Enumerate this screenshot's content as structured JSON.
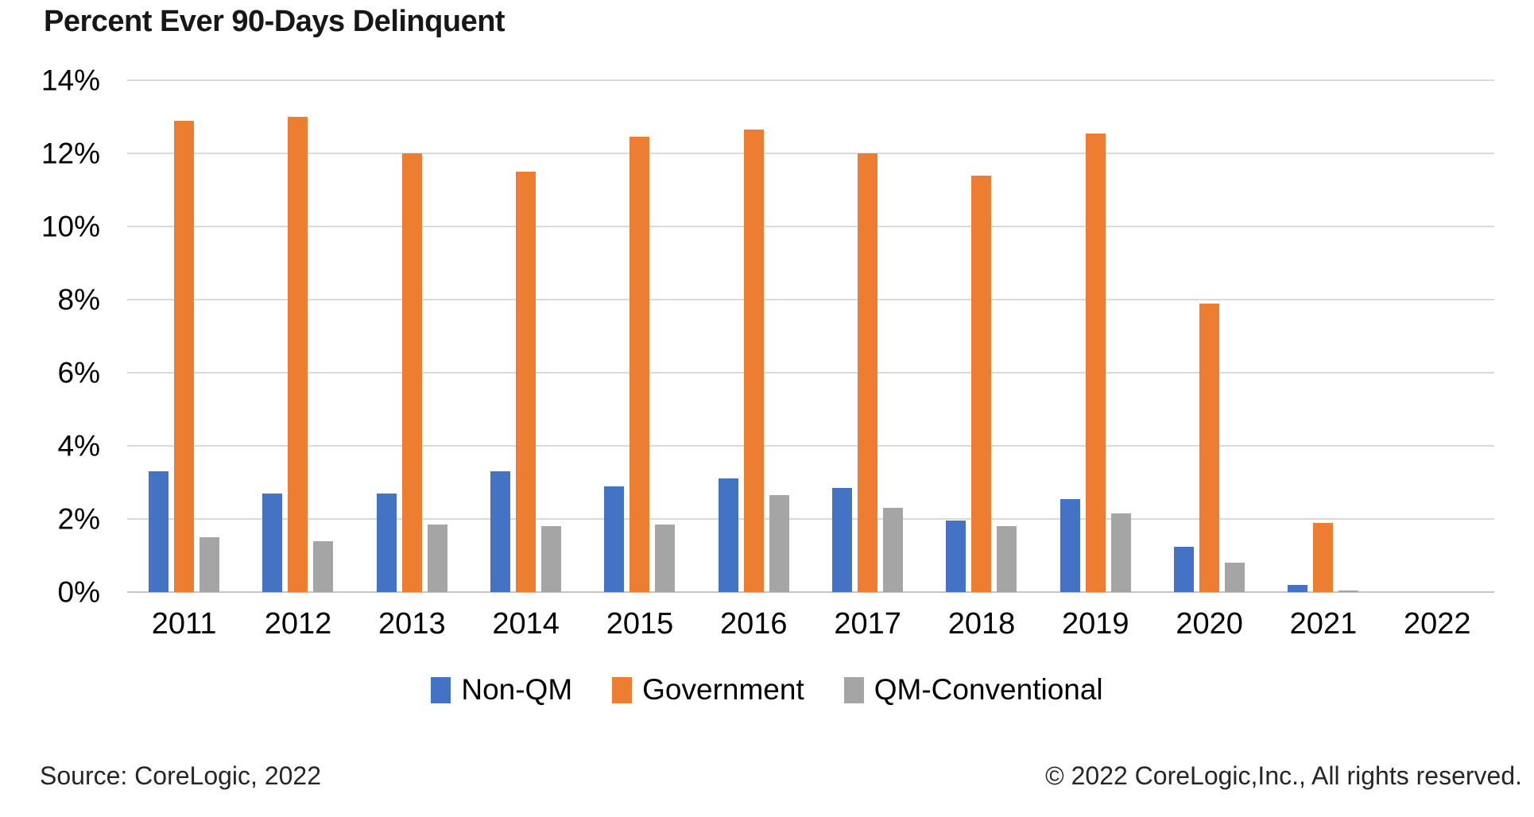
{
  "title": "Percent Ever 90-Days Delinquent",
  "footer": {
    "source": "Source: CoreLogic, 2022",
    "copyright": "© 2022 CoreLogic,Inc., All rights reserved."
  },
  "colors": {
    "non_qm": "#4472C4",
    "government": "#ED7D31",
    "qm_conventional": "#A5A5A5",
    "gridline": "#D9D9D9",
    "axis_line": "#C6C4C4"
  },
  "chart_data": {
    "type": "bar",
    "title": "Percent Ever 90-Days Delinquent",
    "categories": [
      "2011",
      "2012",
      "2013",
      "2014",
      "2015",
      "2016",
      "2017",
      "2018",
      "2019",
      "2020",
      "2021",
      "2022"
    ],
    "series": [
      {
        "name": "Non-QM",
        "color": "#4472C4",
        "values": [
          3.3,
          2.7,
          2.7,
          3.3,
          2.9,
          3.1,
          2.85,
          1.95,
          2.55,
          1.25,
          0.2,
          0
        ]
      },
      {
        "name": "Government",
        "color": "#ED7D31",
        "values": [
          12.9,
          13.0,
          12.0,
          11.5,
          12.45,
          12.65,
          12.0,
          11.4,
          12.55,
          7.9,
          1.9,
          0
        ]
      },
      {
        "name": "QM-Conventional",
        "color": "#A5A5A5",
        "values": [
          1.5,
          1.4,
          1.85,
          1.8,
          1.85,
          2.65,
          2.3,
          1.8,
          2.15,
          0.8,
          0.05,
          0
        ]
      }
    ],
    "xlabel": "",
    "ylabel": "",
    "ylim": [
      0,
      14
    ],
    "ytick_step": 2,
    "ytick_labels": [
      "0%",
      "2%",
      "4%",
      "6%",
      "8%",
      "10%",
      "12%",
      "14%"
    ],
    "grid": true,
    "legend_position": "bottom"
  }
}
